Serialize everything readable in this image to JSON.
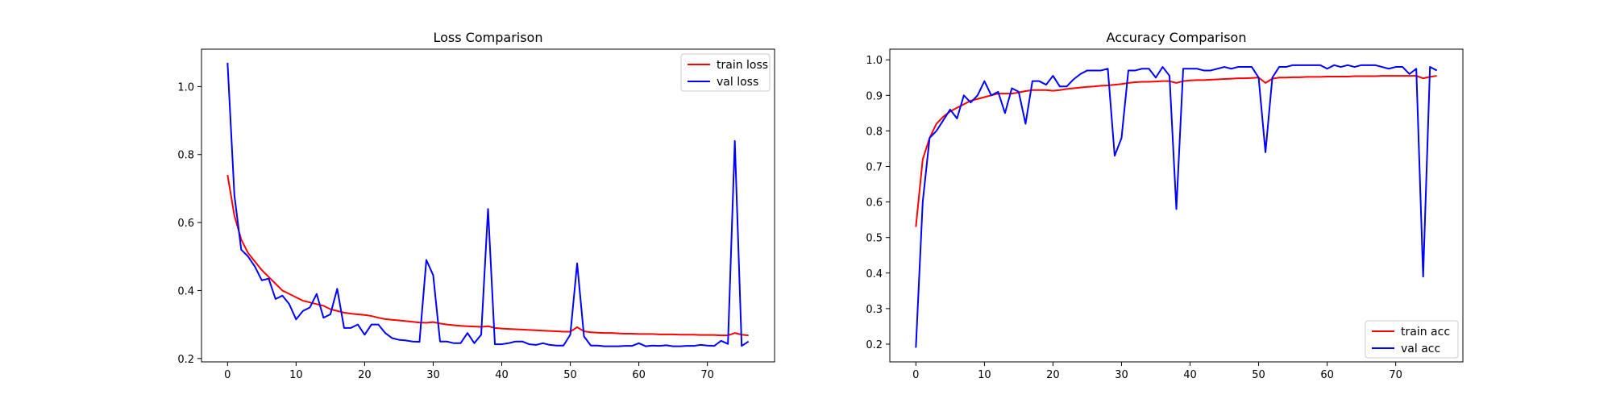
{
  "chart_data": [
    {
      "type": "line",
      "title": "Loss Comparison",
      "xlabel": "",
      "ylabel": "",
      "xlim": [
        -3.8,
        79.8
      ],
      "ylim": [
        0.19,
        1.11
      ],
      "xticks": [
        0,
        10,
        20,
        30,
        40,
        50,
        60,
        70
      ],
      "yticks": [
        0.2,
        0.4,
        0.6,
        0.8,
        1.0
      ],
      "ytick_labels": [
        "0.2",
        "0.4",
        "0.6",
        "0.8",
        "1.0"
      ],
      "grid": false,
      "legend": {
        "placement": "top-right"
      },
      "series": [
        {
          "name": "train loss",
          "color": "#ff0000",
          "x": [
            0,
            1,
            2,
            3,
            4,
            5,
            6,
            7,
            8,
            9,
            10,
            11,
            12,
            13,
            14,
            15,
            16,
            17,
            18,
            19,
            20,
            21,
            22,
            23,
            24,
            25,
            26,
            27,
            28,
            29,
            30,
            31,
            32,
            33,
            34,
            35,
            36,
            37,
            38,
            39,
            40,
            41,
            42,
            43,
            44,
            45,
            46,
            47,
            48,
            49,
            50,
            51,
            52,
            53,
            54,
            55,
            56,
            57,
            58,
            59,
            60,
            61,
            62,
            63,
            64,
            65,
            66,
            67,
            68,
            69,
            70,
            71,
            72,
            73,
            74,
            75,
            76
          ],
          "values": [
            0.74,
            0.62,
            0.55,
            0.51,
            0.485,
            0.46,
            0.44,
            0.42,
            0.4,
            0.39,
            0.38,
            0.37,
            0.365,
            0.36,
            0.355,
            0.345,
            0.34,
            0.335,
            0.332,
            0.33,
            0.328,
            0.325,
            0.32,
            0.316,
            0.314,
            0.312,
            0.31,
            0.308,
            0.306,
            0.305,
            0.307,
            0.303,
            0.3,
            0.298,
            0.296,
            0.295,
            0.294,
            0.293,
            0.295,
            0.29,
            0.288,
            0.287,
            0.286,
            0.285,
            0.284,
            0.283,
            0.282,
            0.281,
            0.28,
            0.279,
            0.279,
            0.292,
            0.28,
            0.277,
            0.276,
            0.275,
            0.275,
            0.274,
            0.273,
            0.273,
            0.272,
            0.272,
            0.272,
            0.271,
            0.271,
            0.271,
            0.27,
            0.27,
            0.27,
            0.269,
            0.269,
            0.269,
            0.268,
            0.268,
            0.275,
            0.27,
            0.268
          ]
        },
        {
          "name": "val loss",
          "color": "#0000ff",
          "x": [
            0,
            1,
            2,
            3,
            4,
            5,
            6,
            7,
            8,
            9,
            10,
            11,
            12,
            13,
            14,
            15,
            16,
            17,
            18,
            19,
            20,
            21,
            22,
            23,
            24,
            25,
            26,
            27,
            28,
            29,
            30,
            31,
            32,
            33,
            34,
            35,
            36,
            37,
            38,
            39,
            40,
            41,
            42,
            43,
            44,
            45,
            46,
            47,
            48,
            49,
            50,
            51,
            52,
            53,
            54,
            55,
            56,
            57,
            58,
            59,
            60,
            61,
            62,
            63,
            64,
            65,
            66,
            67,
            68,
            69,
            70,
            71,
            72,
            73,
            74,
            75,
            76
          ],
          "values": [
            1.07,
            0.68,
            0.52,
            0.5,
            0.47,
            0.43,
            0.435,
            0.375,
            0.385,
            0.36,
            0.315,
            0.34,
            0.35,
            0.39,
            0.32,
            0.33,
            0.405,
            0.29,
            0.29,
            0.3,
            0.27,
            0.3,
            0.3,
            0.275,
            0.26,
            0.255,
            0.253,
            0.25,
            0.249,
            0.49,
            0.445,
            0.25,
            0.25,
            0.245,
            0.245,
            0.275,
            0.245,
            0.27,
            0.64,
            0.242,
            0.242,
            0.245,
            0.25,
            0.25,
            0.242,
            0.24,
            0.245,
            0.24,
            0.238,
            0.238,
            0.27,
            0.48,
            0.265,
            0.238,
            0.238,
            0.236,
            0.236,
            0.236,
            0.237,
            0.237,
            0.245,
            0.236,
            0.238,
            0.237,
            0.239,
            0.236,
            0.236,
            0.237,
            0.237,
            0.24,
            0.238,
            0.237,
            0.252,
            0.243,
            0.84,
            0.237,
            0.25
          ]
        }
      ]
    },
    {
      "type": "line",
      "title": "Accuracy Comparison",
      "xlabel": "",
      "ylabel": "",
      "xlim": [
        -3.8,
        79.8
      ],
      "ylim": [
        0.15,
        1.03
      ],
      "xticks": [
        0,
        10,
        20,
        30,
        40,
        50,
        60,
        70
      ],
      "yticks": [
        0.2,
        0.3,
        0.4,
        0.5,
        0.6,
        0.7,
        0.8,
        0.9,
        1.0
      ],
      "ytick_labels": [
        "0.2",
        "0.3",
        "0.4",
        "0.5",
        "0.6",
        "0.7",
        "0.8",
        "0.9",
        "1.0"
      ],
      "grid": false,
      "legend": {
        "placement": "bottom-right"
      },
      "series": [
        {
          "name": "train acc",
          "color": "#ff0000",
          "x": [
            0,
            1,
            2,
            3,
            4,
            5,
            6,
            7,
            8,
            9,
            10,
            11,
            12,
            13,
            14,
            15,
            16,
            17,
            18,
            19,
            20,
            21,
            22,
            23,
            24,
            25,
            26,
            27,
            28,
            29,
            30,
            31,
            32,
            33,
            34,
            35,
            36,
            37,
            38,
            39,
            40,
            41,
            42,
            43,
            44,
            45,
            46,
            47,
            48,
            49,
            50,
            51,
            52,
            53,
            54,
            55,
            56,
            57,
            58,
            59,
            60,
            61,
            62,
            63,
            64,
            65,
            66,
            67,
            68,
            69,
            70,
            71,
            72,
            73,
            74,
            75,
            76
          ],
          "values": [
            0.53,
            0.72,
            0.78,
            0.82,
            0.84,
            0.855,
            0.865,
            0.875,
            0.885,
            0.89,
            0.895,
            0.9,
            0.905,
            0.905,
            0.905,
            0.908,
            0.912,
            0.915,
            0.915,
            0.915,
            0.913,
            0.915,
            0.918,
            0.92,
            0.922,
            0.924,
            0.925,
            0.927,
            0.928,
            0.93,
            0.932,
            0.935,
            0.937,
            0.938,
            0.938,
            0.939,
            0.94,
            0.94,
            0.935,
            0.94,
            0.942,
            0.943,
            0.943,
            0.944,
            0.945,
            0.946,
            0.947,
            0.948,
            0.948,
            0.949,
            0.95,
            0.935,
            0.947,
            0.95,
            0.95,
            0.951,
            0.951,
            0.952,
            0.952,
            0.952,
            0.953,
            0.953,
            0.953,
            0.953,
            0.954,
            0.954,
            0.954,
            0.954,
            0.955,
            0.955,
            0.955,
            0.955,
            0.955,
            0.955,
            0.948,
            0.952,
            0.955
          ]
        },
        {
          "name": "val acc",
          "color": "#0000ff",
          "x": [
            0,
            1,
            2,
            3,
            4,
            5,
            6,
            7,
            8,
            9,
            10,
            11,
            12,
            13,
            14,
            15,
            16,
            17,
            18,
            19,
            20,
            21,
            22,
            23,
            24,
            25,
            26,
            27,
            28,
            29,
            30,
            31,
            32,
            33,
            34,
            35,
            36,
            37,
            38,
            39,
            40,
            41,
            42,
            43,
            44,
            45,
            46,
            47,
            48,
            49,
            50,
            51,
            52,
            53,
            54,
            55,
            56,
            57,
            58,
            59,
            60,
            61,
            62,
            63,
            64,
            65,
            66,
            67,
            68,
            69,
            70,
            71,
            72,
            73,
            74,
            75,
            76
          ],
          "values": [
            0.19,
            0.6,
            0.78,
            0.8,
            0.83,
            0.86,
            0.835,
            0.9,
            0.88,
            0.9,
            0.94,
            0.9,
            0.91,
            0.85,
            0.92,
            0.91,
            0.82,
            0.94,
            0.94,
            0.93,
            0.955,
            0.925,
            0.925,
            0.945,
            0.96,
            0.97,
            0.97,
            0.97,
            0.975,
            0.73,
            0.78,
            0.97,
            0.97,
            0.975,
            0.975,
            0.95,
            0.98,
            0.955,
            0.58,
            0.975,
            0.975,
            0.975,
            0.97,
            0.97,
            0.975,
            0.98,
            0.975,
            0.98,
            0.98,
            0.98,
            0.95,
            0.74,
            0.95,
            0.98,
            0.98,
            0.985,
            0.985,
            0.985,
            0.985,
            0.985,
            0.975,
            0.985,
            0.98,
            0.985,
            0.98,
            0.985,
            0.985,
            0.985,
            0.98,
            0.975,
            0.98,
            0.98,
            0.96,
            0.975,
            0.39,
            0.98,
            0.97
          ]
        }
      ]
    }
  ]
}
